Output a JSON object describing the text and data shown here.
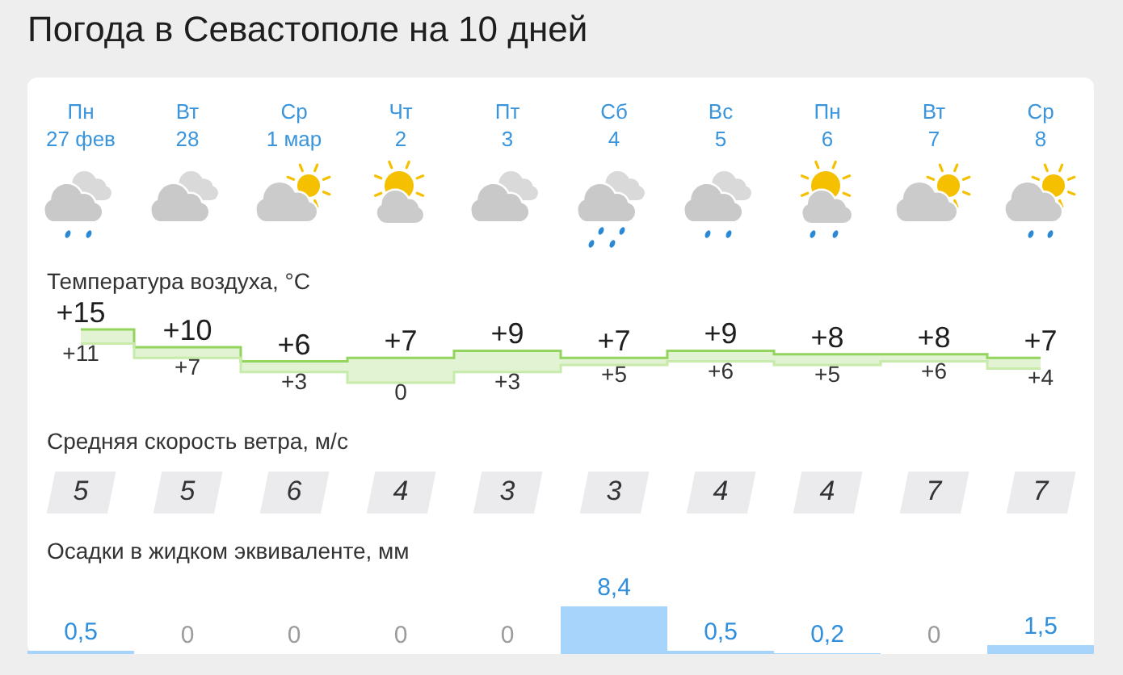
{
  "chart_data": [
    {
      "type": "step",
      "title": "Погода в Севастополе на 10 дней",
      "ylabel": "Температура воздуха, °C",
      "categories": [
        "Пн\n27 фев",
        "Вт\n28",
        "Ср\n1 мар",
        "Чт\n2",
        "Пт\n3",
        "Сб\n4",
        "Вс\n5",
        "Пн\n6",
        "Вт\n7",
        "Ср\n8"
      ],
      "tick_labels": "x",
      "series": [
        {
          "color": "#93d45e",
          "values": [
            15,
            10,
            6,
            7,
            9,
            7,
            9,
            8,
            8,
            7
          ],
          "lower": [
            11,
            7,
            3,
            0,
            3,
            5,
            6,
            5,
            6,
            4
          ],
          "upper": [
            15,
            10,
            6,
            7,
            9,
            7,
            9,
            8,
            8,
            7
          ],
          "value_labels": [
            "+15",
            "+10",
            "+6",
            "+7",
            "+9",
            "+7",
            "+9",
            "+8",
            "+8",
            "+7"
          ]
        },
        {
          "color": "#c8ebab",
          "values": [
            11,
            7,
            3,
            0,
            3,
            5,
            6,
            5,
            6,
            4
          ],
          "value_labels": [
            "+11",
            "+7",
            "+3",
            "0",
            "+3",
            "+5",
            "+6",
            "+5",
            "+6",
            "+4"
          ]
        }
      ]
    },
    {
      "type": "other",
      "ylabel": "Средняя скорость ветра, м/с",
      "color": "#ebebed",
      "values": [
        5,
        5,
        6,
        4,
        3,
        3,
        4,
        4,
        7,
        7
      ],
      "data_labels": true
    },
    {
      "type": "bar",
      "ylabel": "Осадки в жидком эквиваленте, мм",
      "categories": [
        null,
        null,
        null,
        null,
        null,
        null,
        null,
        null,
        null,
        null
      ],
      "color": "#a7d4fa",
      "values": [
        0.5,
        0,
        0,
        0,
        0,
        8.4,
        0.5,
        0.2,
        0,
        1.5
      ],
      "value_labels": [
        "0,5",
        "0",
        "0",
        "0",
        "0",
        "8,4",
        "0,5",
        "0,2",
        "0",
        "1,5"
      ]
    }
  ]
}
